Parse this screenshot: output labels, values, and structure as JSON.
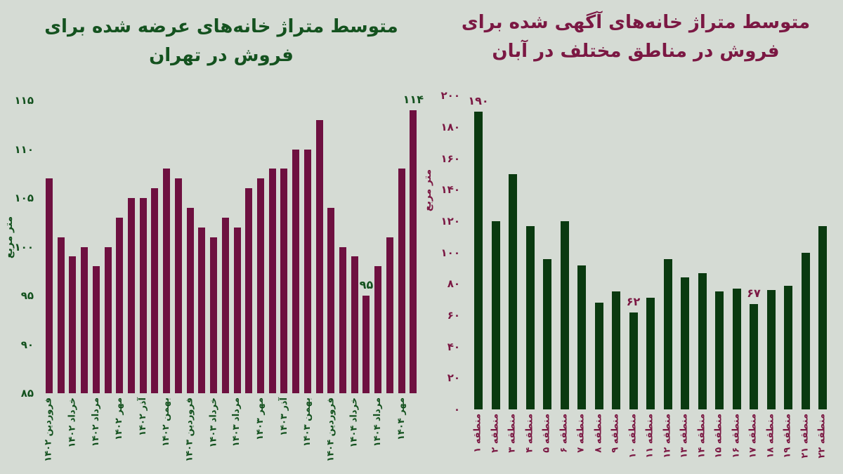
{
  "page": {
    "background": "#d5dbd4"
  },
  "chart_data": [
    {
      "type": "bar",
      "title": "متوسط متراژ خانه‌های عرضه شده برای فروش در تهران",
      "title_lines": [
        "متوسط متراژ خانه‌های عرضه شده برای",
        "فروش در تهران"
      ],
      "ylabel": "متر مربع",
      "ylim": [
        85,
        116
      ],
      "grid": false,
      "legend": null,
      "yticks": [
        {
          "value": 85,
          "label": "۸۵"
        },
        {
          "value": 90,
          "label": "۹۰"
        },
        {
          "value": 95,
          "label": "۹۵"
        },
        {
          "value": 100,
          "label": "۱۰۰"
        },
        {
          "value": 105,
          "label": "۱۰۵"
        },
        {
          "value": 110,
          "label": "۱۱۰"
        },
        {
          "value": 115,
          "label": "۱۱۵"
        }
      ],
      "values": [
        107,
        101,
        99,
        100,
        98,
        100,
        103,
        105,
        105,
        106,
        108,
        107,
        104,
        102,
        101,
        103,
        102,
        106,
        107,
        108,
        108,
        110,
        110,
        113,
        104,
        100,
        99,
        95,
        98,
        101,
        108,
        114
      ],
      "xticks": [
        {
          "index": 0,
          "label": "فروردین ۱۴۰۲"
        },
        {
          "index": 2,
          "label": "خرداد ۱۴۰۲"
        },
        {
          "index": 4,
          "label": "مرداد ۱۴۰۲"
        },
        {
          "index": 6,
          "label": "مهر ۱۴۰۲"
        },
        {
          "index": 8,
          "label": "آذر ۱۴۰۲"
        },
        {
          "index": 10,
          "label": "بهمن ۱۴۰۲"
        },
        {
          "index": 12,
          "label": "فروردین ۱۴۰۳"
        },
        {
          "index": 14,
          "label": "خرداد ۱۴۰۳"
        },
        {
          "index": 16,
          "label": "مرداد ۱۴۰۳"
        },
        {
          "index": 18,
          "label": "مهر ۱۴۰۳"
        },
        {
          "index": 20,
          "label": "آذر ۱۴۰۳"
        },
        {
          "index": 22,
          "label": "بهمن ۱۴۰۳"
        },
        {
          "index": 24,
          "label": "فروردین ۱۴۰۴"
        },
        {
          "index": 26,
          "label": "خرداد ۱۴۰۴"
        },
        {
          "index": 28,
          "label": "مرداد ۱۴۰۴"
        },
        {
          "index": 30,
          "label": "مهر ۱۴۰۴"
        }
      ],
      "annotations": [
        {
          "index": 27,
          "text": "۹۵"
        },
        {
          "index": 31,
          "text": "۱۱۴"
        }
      ],
      "colors": {
        "bar": "#6e1040",
        "text": "#14521f"
      }
    },
    {
      "type": "bar",
      "title": "متوسط متراژ خانه‌های آگهی شده برای فروش در مناطق مختلف در آبان",
      "title_lines": [
        "متوسط متراژ خانه‌های آگهی شده برای",
        "فروش در مناطق مختلف در آبان"
      ],
      "ylabel": "متر مربع",
      "ylim": [
        0,
        200
      ],
      "grid": false,
      "legend": null,
      "yticks": [
        {
          "value": 0,
          "label": "۰"
        },
        {
          "value": 20,
          "label": "۲۰"
        },
        {
          "value": 40,
          "label": "۴۰"
        },
        {
          "value": 60,
          "label": "۶۰"
        },
        {
          "value": 80,
          "label": "۸۰"
        },
        {
          "value": 100,
          "label": "۱۰۰"
        },
        {
          "value": 120,
          "label": "۱۲۰"
        },
        {
          "value": 140,
          "label": "۱۴۰"
        },
        {
          "value": 160,
          "label": "۱۶۰"
        },
        {
          "value": 180,
          "label": "۱۸۰"
        },
        {
          "value": 200,
          "label": "۲۰۰"
        }
      ],
      "categories": [
        "منطقه ۱",
        "منطقه ۲",
        "منطقه ۳",
        "منطقه ۴",
        "منطقه ۵",
        "منطقه ۶",
        "منطقه ۷",
        "منطقه ۸",
        "منطقه ۹",
        "منطقه ۱۰",
        "منطقه ۱۱",
        "منطقه ۱۲",
        "منطقه ۱۳",
        "منطقه ۱۴",
        "منطقه ۱۵",
        "منطقه ۱۶",
        "منطقه ۱۷",
        "منطقه ۱۸",
        "منطقه ۱۹",
        "منطقه ۲۱",
        "منطقه ۲۲"
      ],
      "values": [
        190,
        120,
        150,
        117,
        96,
        120,
        92,
        68,
        75,
        62,
        71,
        96,
        84,
        87,
        75,
        77,
        67,
        76,
        79,
        100,
        117
      ],
      "annotations": [
        {
          "index": 0,
          "text": "۱۹۰"
        },
        {
          "index": 9,
          "text": "۶۲"
        },
        {
          "index": 16,
          "text": "۶۷"
        }
      ],
      "colors": {
        "bar": "#0a3a10",
        "text": "#7b1843"
      }
    }
  ]
}
